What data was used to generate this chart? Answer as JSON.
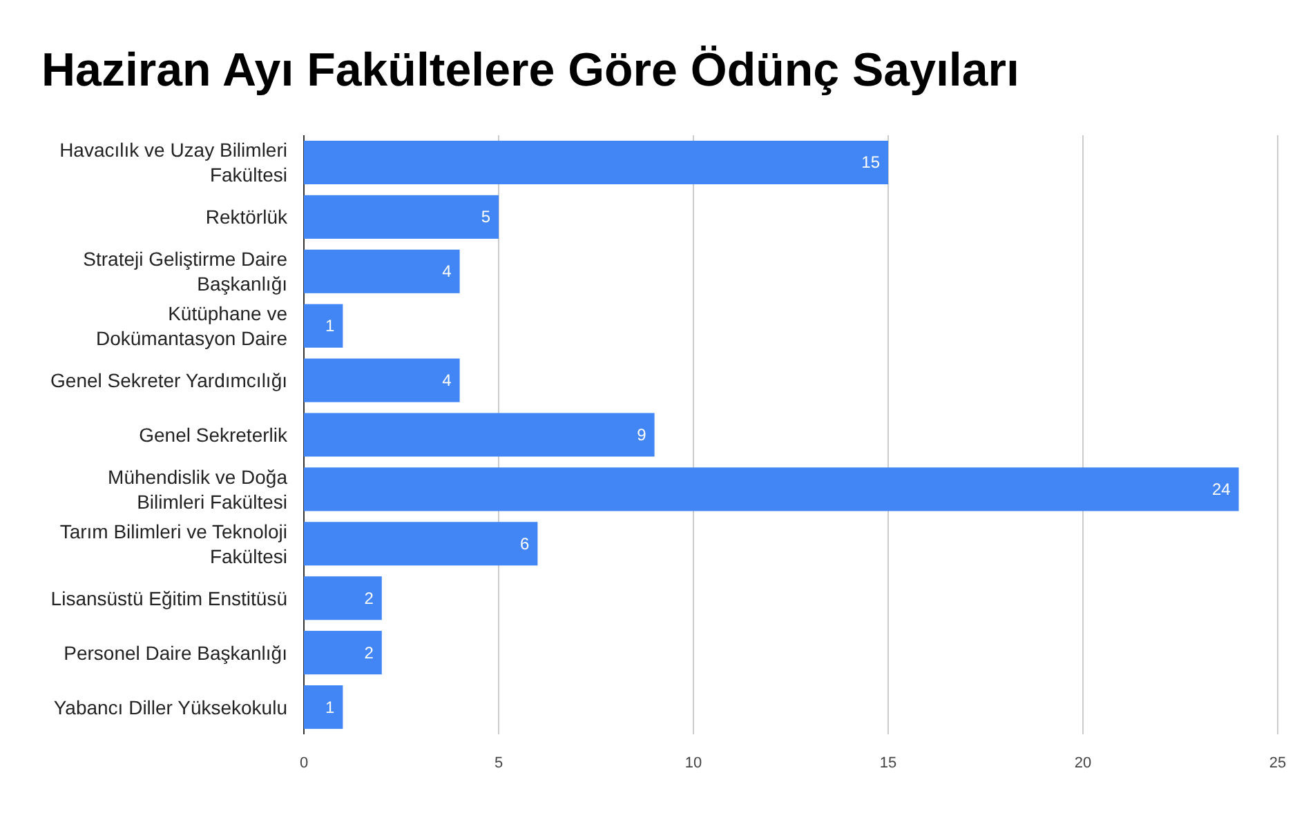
{
  "chart_data": {
    "type": "bar",
    "orientation": "horizontal",
    "title": "Haziran Ayı Fakültelere Göre Ödünç Sayıları",
    "categories": [
      "Havacılık ve Uzay Bilimleri Fakültesi",
      "Rektörlük",
      "Strateji Geliştirme Daire Başkanlığı",
      "Kütüphane ve Dokümantasyon Daire",
      "Genel Sekreter Yardımcılığı",
      "Genel Sekreterlik",
      "Mühendislik ve Doğa Bilimleri Fakültesi",
      "Tarım Bilimleri ve Teknoloji Fakültesi",
      "Lisansüstü Eğitim Enstitüsü",
      "Personel Daire Başkanlığı",
      "Yabancı Diller Yüksekokulu"
    ],
    "values": [
      15,
      5,
      4,
      1,
      4,
      9,
      24,
      6,
      2,
      2,
      1
    ],
    "color": "#4285f4",
    "xlim": [
      0,
      25
    ],
    "xticks": [
      0,
      5,
      10,
      15,
      20,
      25
    ],
    "grid": "x",
    "data_labels": true
  }
}
